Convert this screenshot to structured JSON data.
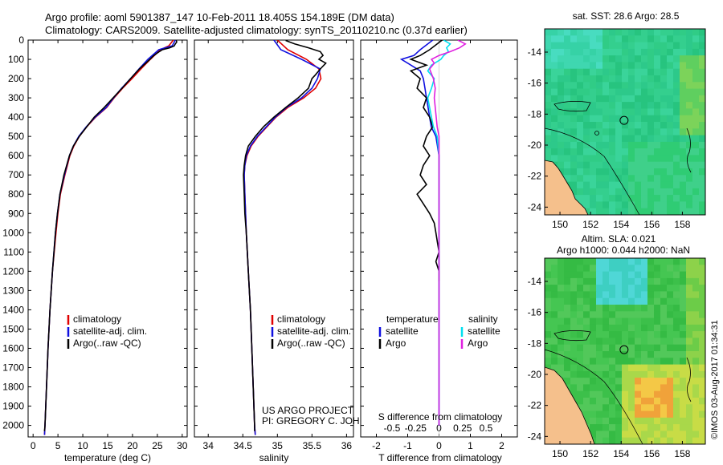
{
  "header": {
    "title_line1": "Argo profile: aoml 5901387_147 10-Feb-2011 18.405S 154.189E (DM data)",
    "title_line2": "Climatology: CARS2009. Satellite-adjusted climatology: synTS_20110210.nc (0.37d earlier)"
  },
  "credits": {
    "project": "US ARGO PROJECT",
    "pi": "PI: GREGORY C. JOHNSON",
    "stamp": "©IMOS 03-Aug-2017 01:34:31"
  },
  "colors": {
    "climatology": "#e00000",
    "satellite": "#1010e0",
    "argo": "#000000",
    "salinity_satellite": "#00e0f0",
    "salinity_argo": "#e020e0"
  },
  "chart_data": [
    {
      "type": "line",
      "id": "temperature",
      "xlabel": "temperature (deg C)",
      "ylabel": "",
      "xlim": [
        -1,
        31
      ],
      "ylim": [
        2060,
        0
      ],
      "xticks": [
        0,
        5,
        10,
        15,
        20,
        25,
        30
      ],
      "yticks": [
        0,
        100,
        200,
        300,
        400,
        500,
        600,
        700,
        800,
        900,
        1000,
        1100,
        1200,
        1300,
        1400,
        1500,
        1600,
        1700,
        1800,
        1900,
        2000
      ],
      "legend": [
        "climatology",
        "satellite-adj. clim.",
        "Argo(..raw -QC)"
      ],
      "series": [
        {
          "name": "climatology",
          "color": "#e00000",
          "depth": [
            0,
            30,
            50,
            100,
            150,
            200,
            250,
            300,
            350,
            400,
            450,
            500,
            550,
            600,
            700,
            800,
            900,
            1000,
            1200,
            1400,
            1600,
            1800,
            2000,
            2050
          ],
          "values": [
            28.2,
            27.3,
            25.6,
            23.6,
            21.7,
            19.9,
            18.0,
            16.3,
            14.8,
            12.6,
            10.8,
            9.3,
            8.2,
            7.4,
            6.4,
            5.5,
            5.0,
            4.6,
            3.9,
            3.4,
            3.0,
            2.7,
            2.4,
            2.3
          ]
        },
        {
          "name": "satellite-adj. clim.",
          "color": "#1010e0",
          "depth": [
            0,
            30,
            50,
            100,
            150,
            200,
            250,
            300,
            350,
            400,
            450,
            500,
            550,
            600,
            700,
            800,
            900,
            1000,
            1200,
            1400,
            1600,
            1800,
            2000,
            2050
          ],
          "values": [
            28.6,
            28.0,
            25.3,
            23.1,
            21.3,
            19.6,
            17.8,
            16.2,
            14.7,
            12.5,
            10.7,
            9.2,
            8.1,
            7.3,
            6.3,
            5.4,
            4.9,
            4.5,
            3.9,
            3.4,
            3.0,
            2.7,
            2.4,
            2.3
          ]
        },
        {
          "name": "Argo(..raw -QC)",
          "color": "#000000",
          "depth": [
            2,
            10,
            20,
            30,
            40,
            50,
            60,
            80,
            100,
            150,
            200,
            250,
            300,
            350,
            400,
            450,
            500,
            550,
            600,
            700,
            800,
            900,
            1000,
            1200,
            1400,
            1600,
            1800,
            2000,
            2030
          ],
          "values": [
            28.8,
            28.9,
            28.6,
            28.4,
            27.5,
            26.0,
            25.4,
            24.3,
            23.5,
            21.4,
            19.6,
            17.9,
            16.1,
            14.3,
            12.3,
            10.8,
            9.3,
            8.1,
            7.3,
            6.2,
            5.4,
            4.9,
            4.5,
            3.9,
            3.4,
            3.0,
            2.7,
            2.4,
            2.3
          ]
        }
      ]
    },
    {
      "type": "line",
      "id": "salinity",
      "xlabel": "salinity",
      "xlim": [
        33.8,
        36.1
      ],
      "ylim": [
        2060,
        0
      ],
      "xticks": [
        34,
        34.5,
        35,
        35.5,
        36
      ],
      "legend": [
        "climatology",
        "satellite-adj. clim.",
        "Argo(..raw -QC)"
      ],
      "series": [
        {
          "name": "climatology",
          "color": "#e00000",
          "depth": [
            0,
            50,
            100,
            150,
            200,
            250,
            300,
            350,
            400,
            450,
            500,
            550,
            600,
            650,
            700,
            800,
            900,
            1000,
            1200,
            1400,
            1600,
            1800,
            2000,
            2050
          ],
          "values": [
            35.0,
            35.15,
            35.42,
            35.6,
            35.63,
            35.55,
            35.38,
            35.15,
            34.98,
            34.85,
            34.72,
            34.62,
            34.56,
            34.53,
            34.52,
            34.53,
            34.54,
            34.55,
            34.58,
            34.61,
            34.63,
            34.65,
            34.67,
            34.68
          ]
        },
        {
          "name": "satellite-adj. clim.",
          "color": "#1010e0",
          "depth": [
            0,
            50,
            100,
            150,
            200,
            250,
            300,
            350,
            400,
            450,
            500,
            550,
            600,
            650,
            700,
            800,
            900,
            1000,
            1200,
            1400,
            1600,
            1800,
            2000,
            2050
          ],
          "values": [
            34.95,
            35.05,
            35.35,
            35.62,
            35.58,
            35.5,
            35.35,
            35.13,
            34.97,
            34.84,
            34.71,
            34.61,
            34.55,
            34.53,
            34.52,
            34.53,
            34.54,
            34.55,
            34.58,
            34.61,
            34.63,
            34.65,
            34.67,
            34.68
          ]
        },
        {
          "name": "Argo(..raw -QC)",
          "color": "#000000",
          "depth": [
            2,
            20,
            40,
            60,
            80,
            100,
            120,
            150,
            180,
            200,
            250,
            300,
            350,
            400,
            450,
            500,
            550,
            600,
            650,
            700,
            800,
            900,
            1000,
            1200,
            1400,
            1600,
            1800,
            2000,
            2030
          ],
          "values": [
            35.12,
            35.25,
            35.45,
            35.62,
            35.66,
            35.6,
            35.7,
            35.62,
            35.55,
            35.5,
            35.45,
            35.3,
            35.12,
            34.95,
            34.8,
            34.68,
            34.58,
            34.54,
            34.52,
            34.51,
            34.52,
            34.53,
            34.55,
            34.58,
            34.61,
            34.63,
            34.65,
            34.67,
            34.67
          ]
        }
      ]
    },
    {
      "type": "line",
      "id": "difference",
      "xlabel": "T difference from climatology",
      "xlabel_top": "S difference from climatology",
      "xlim": [
        -2.5,
        2.5
      ],
      "ylim": [
        2060,
        0
      ],
      "xticks": [
        -2,
        -1,
        0,
        1,
        2
      ],
      "xticks_s": [
        "-0.5",
        "-0.25",
        "0",
        "0.25",
        "0.5"
      ],
      "legend_headers": [
        "temperature",
        "salinity"
      ],
      "legend": [
        "satellite",
        "Argo",
        "satellite",
        "Argo"
      ],
      "series": [
        {
          "name": "temperature satellite",
          "color": "#1010e0",
          "depth": [
            0,
            50,
            80,
            100,
            130,
            160,
            200,
            250,
            300,
            350,
            400,
            450,
            500,
            600,
            800,
            1000,
            1200,
            1500,
            2000
          ],
          "values": [
            -0.2,
            -0.6,
            -0.8,
            -1.2,
            -0.9,
            -0.6,
            -0.5,
            -0.45,
            -0.4,
            -0.35,
            -0.3,
            -0.25,
            -0.1,
            0.0,
            0.0,
            0.0,
            0.0,
            0.0,
            0.0
          ]
        },
        {
          "name": "temperature Argo",
          "color": "#000000",
          "depth": [
            0,
            50,
            80,
            100,
            130,
            160,
            200,
            250,
            300,
            350,
            400,
            450,
            500,
            550,
            600,
            650,
            700,
            750,
            800,
            850,
            900,
            950,
            1000,
            1050,
            1100,
            1150,
            1200,
            1250
          ],
          "values": [
            0.1,
            -0.3,
            -0.6,
            -0.9,
            -0.4,
            -0.9,
            -0.6,
            -0.7,
            -0.4,
            -0.5,
            -0.3,
            -0.2,
            -0.4,
            -0.5,
            -0.3,
            -0.5,
            -0.6,
            -0.4,
            -0.7,
            -0.5,
            -0.3,
            -0.15,
            -0.1,
            -0.05,
            0.0,
            -0.1,
            0.0,
            0.0
          ]
        },
        {
          "name": "salinity satellite",
          "color": "#00e0f0",
          "depth": [
            0,
            20,
            40,
            60,
            80,
            100,
            130,
            160,
            200,
            250,
            300,
            350,
            400,
            450,
            500,
            600,
            800,
            1000,
            1500,
            2000
          ],
          "values": [
            0.05,
            0.12,
            0.08,
            0.1,
            0.05,
            0.02,
            -0.08,
            -0.12,
            -0.05,
            -0.08,
            -0.12,
            -0.1,
            -0.08,
            -0.06,
            -0.02,
            0.0,
            0.0,
            0.0,
            0.0,
            0.0
          ]
        },
        {
          "name": "salinity Argo",
          "color": "#e020e0",
          "depth": [
            0,
            20,
            40,
            60,
            80,
            100,
            120,
            150,
            200,
            250,
            300,
            350,
            400,
            450,
            500,
            600,
            700,
            800,
            1000,
            1500,
            2000
          ],
          "values": [
            0.2,
            0.28,
            0.22,
            0.12,
            0.0,
            -0.08,
            -0.05,
            -0.1,
            -0.06,
            -0.04,
            -0.05,
            -0.04,
            -0.03,
            -0.02,
            0.0,
            0.0,
            0.0,
            0.0,
            0.0,
            0.0,
            0.0
          ]
        }
      ]
    },
    {
      "type": "heatmap",
      "id": "sst_map",
      "title": "sat. SST: 28.6  Argo: 28.5",
      "xlim": [
        149,
        159.5
      ],
      "ylim": [
        -24.5,
        -12.5
      ],
      "xticks": [
        150,
        152,
        154,
        156,
        158
      ],
      "yticks": [
        -14,
        -16,
        -18,
        -20,
        -22,
        -24
      ],
      "marker": [
        154.189,
        -18.405
      ]
    },
    {
      "type": "heatmap",
      "id": "sla_map",
      "title_line1": "Altim. SLA: 0.021",
      "title_line2": "Argo h1000: 0.044 h2000: NaN",
      "xlim": [
        149,
        159.5
      ],
      "ylim": [
        -24.5,
        -12.5
      ],
      "xticks": [
        150,
        152,
        154,
        156,
        158
      ],
      "yticks": [
        -14,
        -16,
        -18,
        -20,
        -22,
        -24
      ],
      "marker": [
        154.189,
        -18.405
      ]
    }
  ]
}
